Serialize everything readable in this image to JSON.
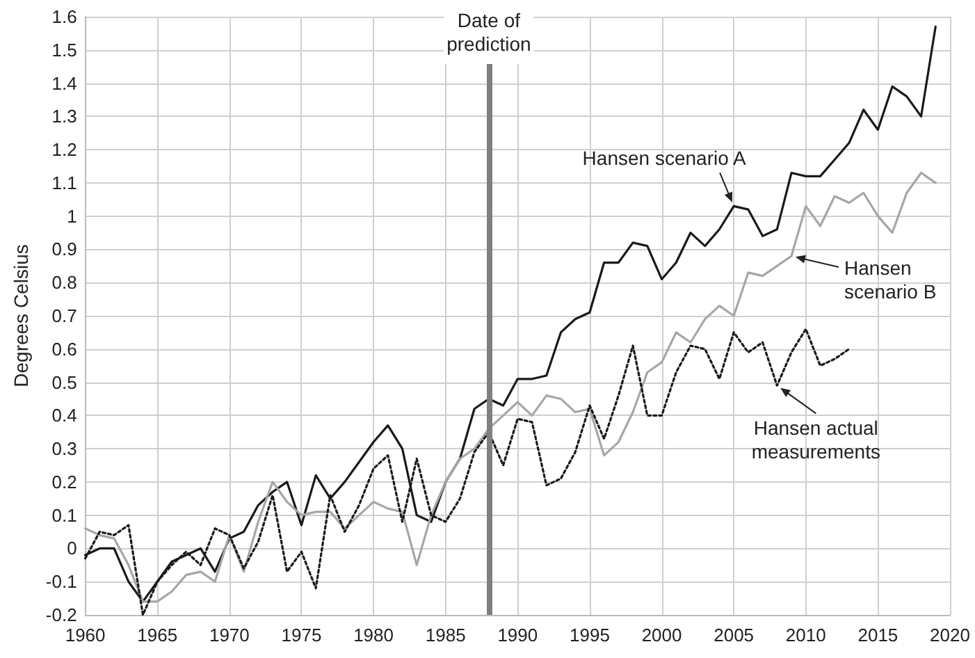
{
  "chart_data": {
    "type": "line",
    "ylabel": "Degrees Celsius",
    "x": [
      1960,
      1961,
      1962,
      1963,
      1964,
      1965,
      1966,
      1967,
      1968,
      1969,
      1970,
      1971,
      1972,
      1973,
      1974,
      1975,
      1976,
      1977,
      1978,
      1979,
      1980,
      1981,
      1982,
      1983,
      1984,
      1985,
      1986,
      1987,
      1988,
      1989,
      1990,
      1991,
      1992,
      1993,
      1994,
      1995,
      1996,
      1997,
      1998,
      1999,
      2000,
      2001,
      2002,
      2003,
      2004,
      2005,
      2006,
      2007,
      2008,
      2009,
      2010,
      2011,
      2012,
      2013,
      2014,
      2015,
      2016,
      2017,
      2018,
      2019
    ],
    "series": [
      {
        "color": "#1a1a1a",
        "line_style": "solid",
        "values": [
          -0.02,
          0.0,
          0.0,
          -0.1,
          -0.16,
          -0.1,
          -0.04,
          -0.02,
          0.0,
          -0.07,
          0.03,
          0.05,
          0.13,
          0.17,
          0.2,
          0.07,
          0.22,
          0.15,
          0.2,
          0.26,
          0.32,
          0.37,
          0.3,
          0.1,
          0.08,
          0.2,
          0.27,
          0.42,
          0.45,
          0.43,
          0.51,
          0.51,
          0.52,
          0.65,
          0.69,
          0.71,
          0.86,
          0.86,
          0.92,
          0.91,
          0.81,
          0.86,
          0.95,
          0.91,
          0.96,
          1.03,
          1.02,
          0.94,
          0.96,
          1.13,
          1.12,
          1.12,
          1.17,
          1.22,
          1.32,
          1.26,
          1.39,
          1.36,
          1.3,
          1.57
        ]
      },
      {
        "color": "#a6a6a6",
        "line_style": "solid",
        "values": [
          0.06,
          0.04,
          0.03,
          -0.05,
          -0.16,
          -0.16,
          -0.13,
          -0.08,
          -0.07,
          -0.1,
          0.04,
          -0.07,
          0.08,
          0.2,
          0.14,
          0.1,
          0.11,
          0.11,
          0.06,
          0.1,
          0.14,
          0.12,
          0.11,
          -0.05,
          0.1,
          0.2,
          0.27,
          0.3,
          0.36,
          0.4,
          0.44,
          0.4,
          0.46,
          0.45,
          0.41,
          0.42,
          0.28,
          0.32,
          0.41,
          0.53,
          0.56,
          0.65,
          0.62,
          0.69,
          0.73,
          0.7,
          0.83,
          0.82,
          0.85,
          0.88,
          1.03,
          0.97,
          1.06,
          1.04,
          1.07,
          1.0,
          0.95,
          1.07,
          1.13,
          1.1
        ]
      },
      {
        "color": "#1a1a1a",
        "line_style": "dotted",
        "values": [
          -0.03,
          0.05,
          0.04,
          0.07,
          -0.2,
          -0.1,
          -0.05,
          -0.01,
          -0.05,
          0.06,
          0.04,
          -0.06,
          0.02,
          0.16,
          -0.07,
          -0.01,
          -0.12,
          0.16,
          0.05,
          0.13,
          0.24,
          0.28,
          0.08,
          0.27,
          0.1,
          0.08,
          0.15,
          0.29,
          0.35,
          0.25,
          0.39,
          0.38,
          0.19,
          0.21,
          0.29,
          0.43,
          0.33,
          0.46,
          0.61,
          0.4,
          0.4,
          0.53,
          0.61,
          0.6,
          0.51,
          0.65,
          0.59,
          0.62,
          0.49,
          0.59,
          0.66,
          0.55,
          0.57,
          0.6,
          null,
          null,
          null,
          null,
          null,
          null
        ]
      }
    ],
    "xlim": [
      1960,
      2020
    ],
    "xticks": [
      1960,
      1965,
      1970,
      1975,
      1980,
      1985,
      1990,
      1995,
      2000,
      2005,
      2010,
      2015,
      2020
    ],
    "ylim": [
      -0.2,
      1.6
    ],
    "yticks": [
      -0.2,
      -0.1,
      0,
      0.1,
      0.2,
      0.3,
      0.4,
      0.5,
      0.6,
      0.7,
      0.8,
      0.9,
      1,
      1.1,
      1.2,
      1.3,
      1.4,
      1.5,
      1.6
    ],
    "grid": true,
    "legend": false,
    "marker": "none",
    "ref_lines": [
      {
        "axis": "x",
        "value": 1988,
        "label": "Date of\nprediction",
        "color": "#808080"
      }
    ],
    "annotations": [
      {
        "text": "Hansen scenario A",
        "x": 2005,
        "y": 1.03
      },
      {
        "text": "Hansen\nscenario B",
        "x": 2009,
        "y": 0.88
      },
      {
        "text": "Hansen actual\nmeasurements",
        "x": 2008,
        "y": 0.49
      }
    ]
  }
}
